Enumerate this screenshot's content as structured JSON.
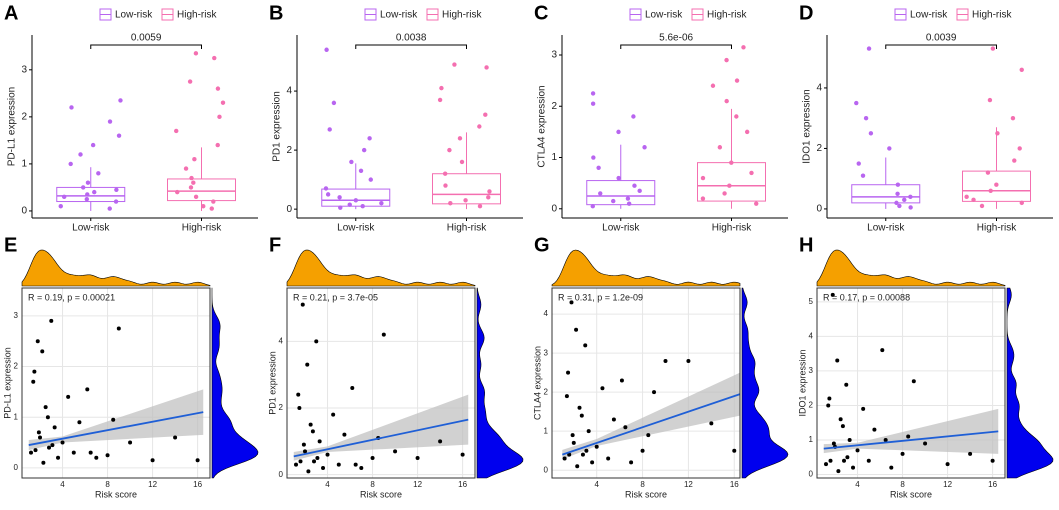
{
  "chart_data": [
    {
      "type": "box",
      "panel": "A",
      "ylabel": "PD-L1 expression",
      "categories": [
        "Low-risk",
        "High-risk"
      ],
      "pvalue": "0.0059",
      "ylim": [
        -0.15,
        3.74
      ],
      "yticks": [
        0,
        1,
        2,
        3
      ],
      "series": [
        {
          "name": "Low-risk",
          "color": "#b865f0",
          "box": {
            "q1": 0.2,
            "median": 0.32,
            "q3": 0.5,
            "whisker_low": 0,
            "whisker_high": 0.93
          },
          "points": [
            0.1,
            0.2,
            0.3,
            0.4,
            0.5,
            0.6,
            0.8,
            1.0,
            1.2,
            1.4,
            1.6,
            1.9,
            2.2,
            2.35,
            0.05,
            0.35,
            0.45,
            0.25
          ]
        },
        {
          "name": "High-risk",
          "color": "#f46fb0",
          "box": {
            "q1": 0.22,
            "median": 0.42,
            "q3": 0.68,
            "whisker_low": 0,
            "whisker_high": 1.35
          },
          "points": [
            0.1,
            0.3,
            0.5,
            0.7,
            0.9,
            1.1,
            1.4,
            1.7,
            2.0,
            2.3,
            2.6,
            2.75,
            3.25,
            3.35,
            0.2,
            0.4,
            0.6,
            0.05
          ]
        }
      ]
    },
    {
      "type": "box",
      "panel": "B",
      "ylabel": "PD1 expression",
      "categories": [
        "Low-risk",
        "High-risk"
      ],
      "pvalue": "0.0038",
      "ylim": [
        -0.3,
        5.9
      ],
      "yticks": [
        0,
        2,
        4
      ],
      "series": [
        {
          "name": "Low-risk",
          "color": "#b865f0",
          "box": {
            "q1": 0.1,
            "median": 0.3,
            "q3": 0.68,
            "whisker_low": 0,
            "whisker_high": 1.55
          },
          "points": [
            0.05,
            0.2,
            0.4,
            0.7,
            1.0,
            1.3,
            1.6,
            2.0,
            2.4,
            2.7,
            3.6,
            5.4,
            0.1,
            0.3,
            0.5,
            0.15
          ]
        },
        {
          "name": "High-risk",
          "color": "#f46fb0",
          "box": {
            "q1": 0.18,
            "median": 0.5,
            "q3": 1.2,
            "whisker_low": 0,
            "whisker_high": 2.6
          },
          "points": [
            0.1,
            0.4,
            0.8,
            1.2,
            1.6,
            2.0,
            2.4,
            2.8,
            3.2,
            3.7,
            4.1,
            4.8,
            4.9,
            0.3,
            0.6,
            0.2
          ]
        }
      ]
    },
    {
      "type": "box",
      "panel": "C",
      "ylabel": "CTLA4 expression",
      "categories": [
        "Low-risk",
        "High-risk"
      ],
      "pvalue": "5.6e-06",
      "ylim": [
        -0.18,
        3.39
      ],
      "yticks": [
        0,
        1,
        2,
        3
      ],
      "series": [
        {
          "name": "Low-risk",
          "color": "#b865f0",
          "box": {
            "q1": 0.08,
            "median": 0.25,
            "q3": 0.55,
            "whisker_low": 0,
            "whisker_high": 1.25
          },
          "points": [
            0.05,
            0.2,
            0.35,
            0.6,
            0.8,
            1.0,
            1.2,
            1.5,
            1.8,
            2.05,
            2.25,
            0.1,
            0.3,
            0.45,
            0.15
          ]
        },
        {
          "name": "High-risk",
          "color": "#f46fb0",
          "box": {
            "q1": 0.15,
            "median": 0.45,
            "q3": 0.9,
            "whisker_low": 0,
            "whisker_high": 1.95
          },
          "points": [
            0.1,
            0.3,
            0.6,
            0.9,
            1.2,
            1.5,
            1.8,
            2.1,
            2.4,
            2.5,
            2.9,
            3.15,
            0.2,
            0.45,
            0.7
          ]
        }
      ]
    },
    {
      "type": "box",
      "panel": "D",
      "ylabel": "IDO1 expression",
      "categories": [
        "Low-risk",
        "High-risk"
      ],
      "pvalue": "0.0039",
      "ylim": [
        -0.3,
        5.75
      ],
      "yticks": [
        0,
        2,
        4
      ],
      "series": [
        {
          "name": "Low-risk",
          "color": "#b865f0",
          "box": {
            "q1": 0.2,
            "median": 0.4,
            "q3": 0.8,
            "whisker_low": 0,
            "whisker_high": 1.7
          },
          "points": [
            0.05,
            0.2,
            0.5,
            0.8,
            1.1,
            1.5,
            2.0,
            2.5,
            3.0,
            3.5,
            5.3,
            0.3,
            0.4,
            0.1
          ]
        },
        {
          "name": "High-risk",
          "color": "#f46fb0",
          "box": {
            "q1": 0.25,
            "median": 0.6,
            "q3": 1.25,
            "whisker_low": 0,
            "whisker_high": 2.7
          },
          "points": [
            0.1,
            0.4,
            0.8,
            1.2,
            1.6,
            2.0,
            2.5,
            3.0,
            3.6,
            4.6,
            5.3,
            0.3,
            0.6,
            0.2
          ]
        }
      ]
    },
    {
      "type": "scatter",
      "panel": "E",
      "ylabel": "PD-L1 expression",
      "xlabel": "Risk score",
      "annotation": "R = 0.19, p = 0.00021",
      "xlim": [
        0.4,
        17.1
      ],
      "xticks": [
        4,
        8,
        12,
        16
      ],
      "ylim": [
        -0.2,
        3.55
      ],
      "yticks": [
        0,
        1,
        2,
        3
      ],
      "grid": true,
      "color": "#000000",
      "fit_color": "#1f5fd6",
      "top_density_color": "#f5a000",
      "right_density_color": "#0000ee",
      "x": [
        1.2,
        1.5,
        1.8,
        2.0,
        2.2,
        2.5,
        2.8,
        3.0,
        3.3,
        3.6,
        4.0,
        4.5,
        5.0,
        5.5,
        6.2,
        7.0,
        8.0,
        9.0,
        10.0,
        12.0,
        14.0,
        16.0,
        1.4,
        2.3,
        3.1,
        2.7,
        1.9,
        1.6,
        6.5,
        8.5
      ],
      "y": [
        0.3,
        1.9,
        2.5,
        0.6,
        2.3,
        1.2,
        0.4,
        2.9,
        0.8,
        0.2,
        0.5,
        1.4,
        0.3,
        0.9,
        1.55,
        0.2,
        0.25,
        2.75,
        0.5,
        0.15,
        0.6,
        0.15,
        1.7,
        0.1,
        0.45,
        1.0,
        0.7,
        0.35,
        0.3,
        0.95
      ],
      "fit": {
        "x": [
          1,
          16.5
        ],
        "y": [
          0.45,
          1.1
        ]
      },
      "band": {
        "x": [
          1,
          4,
          16.5
        ],
        "lower": [
          0.35,
          0.5,
          0.65
        ],
        "upper": [
          0.55,
          0.62,
          1.55
        ]
      }
    },
    {
      "type": "scatter",
      "panel": "F",
      "ylabel": "PD1 expression",
      "xlabel": "Risk score",
      "annotation": "R = 0.21, p = 3.7e-05",
      "xlim": [
        0.4,
        17.1
      ],
      "xticks": [
        4,
        8,
        12,
        16
      ],
      "ylim": [
        -0.1,
        5.6
      ],
      "yticks": [
        0,
        2,
        4
      ],
      "grid": true,
      "color": "#000000",
      "fit_color": "#1f5fd6",
      "top_density_color": "#f5a000",
      "right_density_color": "#0000ee",
      "x": [
        1.2,
        1.5,
        1.8,
        2.0,
        2.2,
        2.5,
        2.8,
        3.0,
        3.3,
        3.6,
        4.0,
        4.5,
        5.0,
        5.5,
        6.2,
        7.0,
        8.0,
        9.0,
        10.0,
        12.0,
        14.0,
        16.0,
        1.4,
        2.3,
        3.1,
        2.7,
        1.9,
        1.6,
        6.5,
        8.5
      ],
      "y": [
        0.3,
        2.0,
        5.1,
        0.7,
        3.3,
        1.5,
        0.4,
        4.0,
        1.0,
        0.2,
        0.6,
        1.8,
        0.3,
        1.2,
        2.6,
        0.2,
        0.5,
        4.2,
        0.7,
        0.5,
        1.0,
        0.6,
        2.4,
        0.1,
        0.5,
        1.3,
        0.9,
        0.4,
        0.3,
        1.1
      ],
      "fit": {
        "x": [
          1,
          16.5
        ],
        "y": [
          0.55,
          1.65
        ]
      },
      "band": {
        "x": [
          1,
          4,
          16.5
        ],
        "lower": [
          0.42,
          0.68,
          0.9
        ],
        "upper": [
          0.68,
          0.85,
          2.4
        ]
      }
    },
    {
      "type": "scatter",
      "panel": "G",
      "ylabel": "CTLA4 expression",
      "xlabel": "Risk score",
      "annotation": "R = 0.31, p = 1.2e-09",
      "xlim": [
        0.1,
        16.5
      ],
      "xticks": [
        4,
        8,
        12,
        16
      ],
      "ylim": [
        -0.2,
        4.67
      ],
      "yticks": [
        0,
        1,
        2,
        3,
        4
      ],
      "grid": true,
      "color": "#000000",
      "fit_color": "#1f5fd6",
      "top_density_color": "#f5a000",
      "right_density_color": "#0000ee",
      "x": [
        1.2,
        1.5,
        1.8,
        2.0,
        2.2,
        2.5,
        2.8,
        3.0,
        3.3,
        3.6,
        4.0,
        4.5,
        5.0,
        5.5,
        6.2,
        7.0,
        8.0,
        9.0,
        10.0,
        12.0,
        14.0,
        16.0,
        1.4,
        2.3,
        3.1,
        2.7,
        1.9,
        1.6,
        6.5,
        8.5
      ],
      "y": [
        0.3,
        2.5,
        4.3,
        0.7,
        3.6,
        1.6,
        0.4,
        3.2,
        1.0,
        0.2,
        0.6,
        2.1,
        0.3,
        1.3,
        2.3,
        0.2,
        0.5,
        2.0,
        2.8,
        2.8,
        1.2,
        0.5,
        1.9,
        0.1,
        0.5,
        1.4,
        0.9,
        0.4,
        1.1,
        0.9
      ],
      "fit": {
        "x": [
          1,
          16.5
        ],
        "y": [
          0.4,
          1.95
        ]
      },
      "band": {
        "x": [
          1,
          4,
          16.5
        ],
        "lower": [
          0.28,
          0.62,
          1.4
        ],
        "upper": [
          0.52,
          0.8,
          2.5
        ]
      }
    },
    {
      "type": "scatter",
      "panel": "H",
      "ylabel": "IDO1 expression",
      "xlabel": "Risk score",
      "annotation": "R = 0.17, p = 0.00088",
      "xlim": [
        0.4,
        17.1
      ],
      "xticks": [
        4,
        8,
        12,
        16
      ],
      "ylim": [
        -0.1,
        5.4
      ],
      "yticks": [
        0,
        1,
        2,
        3,
        4,
        5
      ],
      "grid": true,
      "color": "#000000",
      "fit_color": "#1f5fd6",
      "top_density_color": "#f5a000",
      "right_density_color": "#0000ee",
      "x": [
        1.2,
        1.5,
        1.8,
        2.0,
        2.2,
        2.5,
        2.8,
        3.0,
        3.3,
        3.6,
        4.0,
        4.5,
        5.0,
        5.5,
        6.2,
        7.0,
        8.0,
        9.0,
        10.0,
        12.0,
        14.0,
        16.0,
        1.4,
        2.3,
        3.1,
        2.7,
        1.9,
        1.6,
        6.5,
        8.5
      ],
      "y": [
        0.3,
        2.2,
        5.2,
        0.8,
        3.3,
        1.6,
        0.4,
        2.6,
        1.0,
        0.2,
        0.7,
        1.9,
        0.4,
        1.3,
        3.6,
        0.2,
        0.6,
        2.7,
        0.9,
        0.3,
        0.6,
        0.4,
        2.0,
        0.1,
        0.5,
        1.4,
        0.9,
        0.4,
        1.0,
        1.1
      ],
      "fit": {
        "x": [
          1,
          16.5
        ],
        "y": [
          0.75,
          1.25
        ]
      },
      "band": {
        "x": [
          1,
          4,
          16.5
        ],
        "lower": [
          0.62,
          0.75,
          0.6
        ],
        "upper": [
          0.88,
          0.92,
          1.9
        ]
      }
    }
  ]
}
